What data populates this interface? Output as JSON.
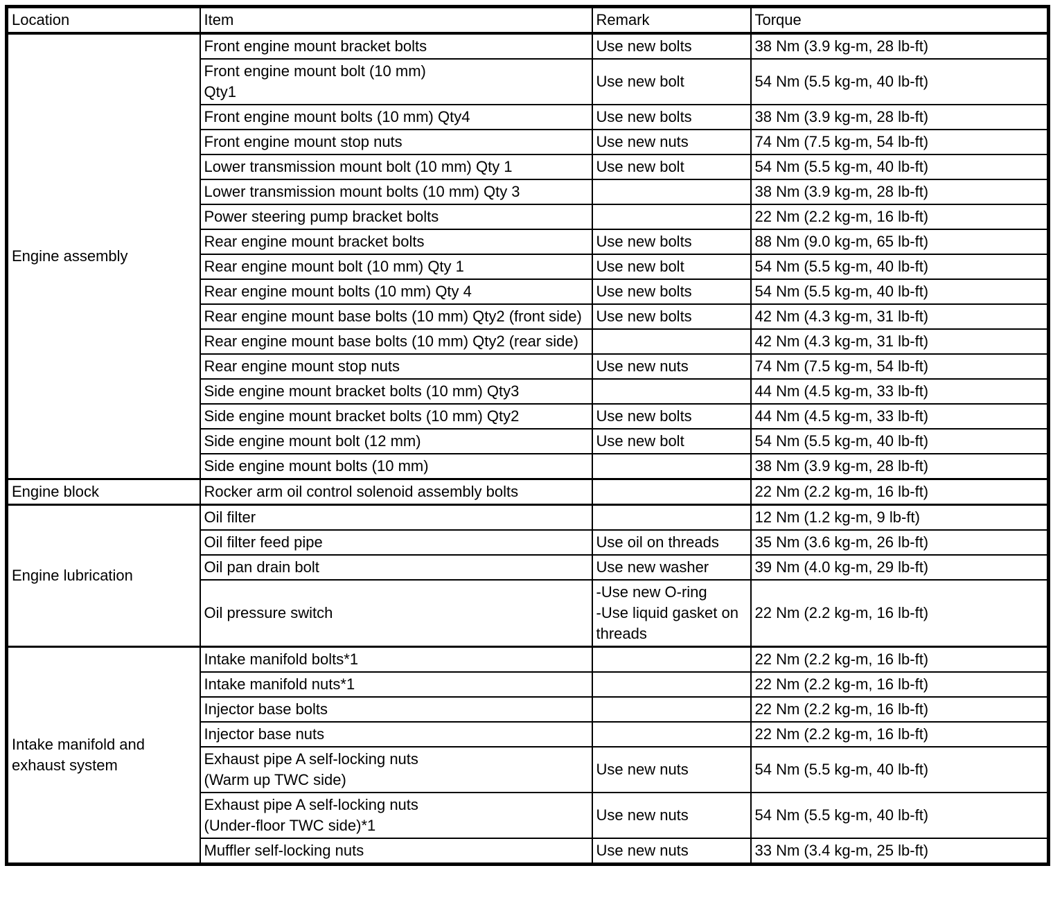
{
  "table": {
    "headers": [
      "Location",
      "Item",
      "Remark",
      "Torque"
    ],
    "sections": [
      {
        "location": "Engine assembly",
        "rows": [
          {
            "item": "Front engine mount bracket bolts",
            "remark": "Use new bolts",
            "torque": "38 Nm (3.9 kg-m, 28 lb-ft)"
          },
          {
            "item": "Front engine mount bolt (10 mm)\nQty1",
            "remark": "Use new bolt",
            "torque": "54 Nm (5.5 kg-m, 40 lb-ft)"
          },
          {
            "item": "Front engine mount bolts (10 mm) Qty4",
            "remark": "Use new bolts",
            "torque": "38 Nm (3.9 kg-m, 28 lb-ft)"
          },
          {
            "item": "Front engine mount stop nuts",
            "remark": "Use new nuts",
            "torque": "74 Nm (7.5 kg-m, 54 lb-ft)"
          },
          {
            "item": "Lower transmission mount bolt (10 mm) Qty 1",
            "remark": "Use new bolt",
            "torque": "54 Nm (5.5 kg-m, 40 lb-ft)"
          },
          {
            "item": "Lower transmission mount bolts (10 mm) Qty 3",
            "remark": "",
            "torque": "38 Nm (3.9 kg-m, 28 lb-ft)"
          },
          {
            "item": "Power steering pump bracket bolts",
            "remark": "",
            "torque": "22 Nm (2.2 kg-m, 16 lb-ft)"
          },
          {
            "item": "Rear engine mount bracket bolts",
            "remark": "Use new bolts",
            "torque": "88 Nm (9.0 kg-m, 65 lb-ft)"
          },
          {
            "item": "Rear engine mount bolt (10 mm) Qty 1",
            "remark": "Use new bolt",
            "torque": "54 Nm (5.5 kg-m, 40 lb-ft)"
          },
          {
            "item": "Rear engine mount bolts (10 mm) Qty 4",
            "remark": "Use new bolts",
            "torque": "54 Nm (5.5 kg-m, 40 lb-ft)"
          },
          {
            "item": "Rear engine mount base bolts (10 mm) Qty2 (front side)",
            "remark": "Use new bolts",
            "torque": "42 Nm (4.3 kg-m, 31 lb-ft)"
          },
          {
            "item": "Rear engine mount base bolts (10 mm) Qty2 (rear side)",
            "remark": "",
            "torque": "42 Nm (4.3 kg-m, 31 lb-ft)"
          },
          {
            "item": "Rear engine mount stop nuts",
            "remark": "Use new nuts",
            "torque": "74 Nm (7.5 kg-m, 54 lb-ft)"
          },
          {
            "item": "Side engine mount bracket bolts (10 mm) Qty3",
            "remark": "",
            "torque": "44 Nm (4.5 kg-m, 33 lb-ft)"
          },
          {
            "item": "Side engine mount bracket bolts (10 mm) Qty2",
            "remark": "Use new bolts",
            "torque": "44 Nm (4.5 kg-m, 33 lb-ft)"
          },
          {
            "item": "Side engine mount bolt (12 mm)",
            "remark": "Use new bolt",
            "torque": "54 Nm (5.5 kg-m, 40 lb-ft)"
          },
          {
            "item": "Side engine mount bolts (10 mm)",
            "remark": "",
            "torque": "38 Nm (3.9 kg-m, 28 lb-ft)"
          }
        ]
      },
      {
        "location": "Engine block",
        "rows": [
          {
            "item": "Rocker arm oil control solenoid assembly bolts",
            "remark": "",
            "torque": "22 Nm (2.2 kg-m, 16 lb-ft)"
          }
        ]
      },
      {
        "location": "Engine lubrication",
        "rows": [
          {
            "item": "Oil filter",
            "remark": "",
            "torque": "12 Nm (1.2 kg-m, 9 lb-ft)"
          },
          {
            "item": "Oil filter feed pipe",
            "remark": "Use oil on threads",
            "torque": "35 Nm (3.6 kg-m, 26 lb-ft)"
          },
          {
            "item": "Oil pan drain bolt",
            "remark": "Use new washer",
            "torque": "39 Nm (4.0 kg-m, 29 lb-ft)"
          },
          {
            "item": "Oil pressure switch",
            "remark": "-Use new O-ring\n-Use liquid gasket on threads",
            "torque": "22 Nm (2.2 kg-m, 16 lb-ft)"
          }
        ]
      },
      {
        "location": "Intake manifold and exhaust system",
        "rows": [
          {
            "item": "Intake manifold bolts*1",
            "remark": "",
            "torque": "22 Nm (2.2 kg-m, 16 lb-ft)"
          },
          {
            "item": "Intake manifold nuts*1",
            "remark": "",
            "torque": "22 Nm (2.2 kg-m, 16 lb-ft)"
          },
          {
            "item": "Injector base bolts",
            "remark": "",
            "torque": "22 Nm (2.2 kg-m, 16 lb-ft)"
          },
          {
            "item": "Injector base nuts",
            "remark": "",
            "torque": "22 Nm (2.2 kg-m, 16 lb-ft)"
          },
          {
            "item": "Exhaust pipe A self-locking nuts\n(Warm up TWC side)",
            "remark": "Use new nuts",
            "torque": "54 Nm (5.5 kg-m, 40 lb-ft)"
          },
          {
            "item": "Exhaust pipe A self-locking nuts\n(Under-floor TWC side)*1",
            "remark": "Use new nuts",
            "torque": "54 Nm (5.5 kg-m, 40 lb-ft)"
          },
          {
            "item": "Muffler self-locking nuts",
            "remark": "Use new nuts",
            "torque": "33 Nm (3.4 kg-m, 25 lb-ft)"
          }
        ]
      }
    ]
  }
}
